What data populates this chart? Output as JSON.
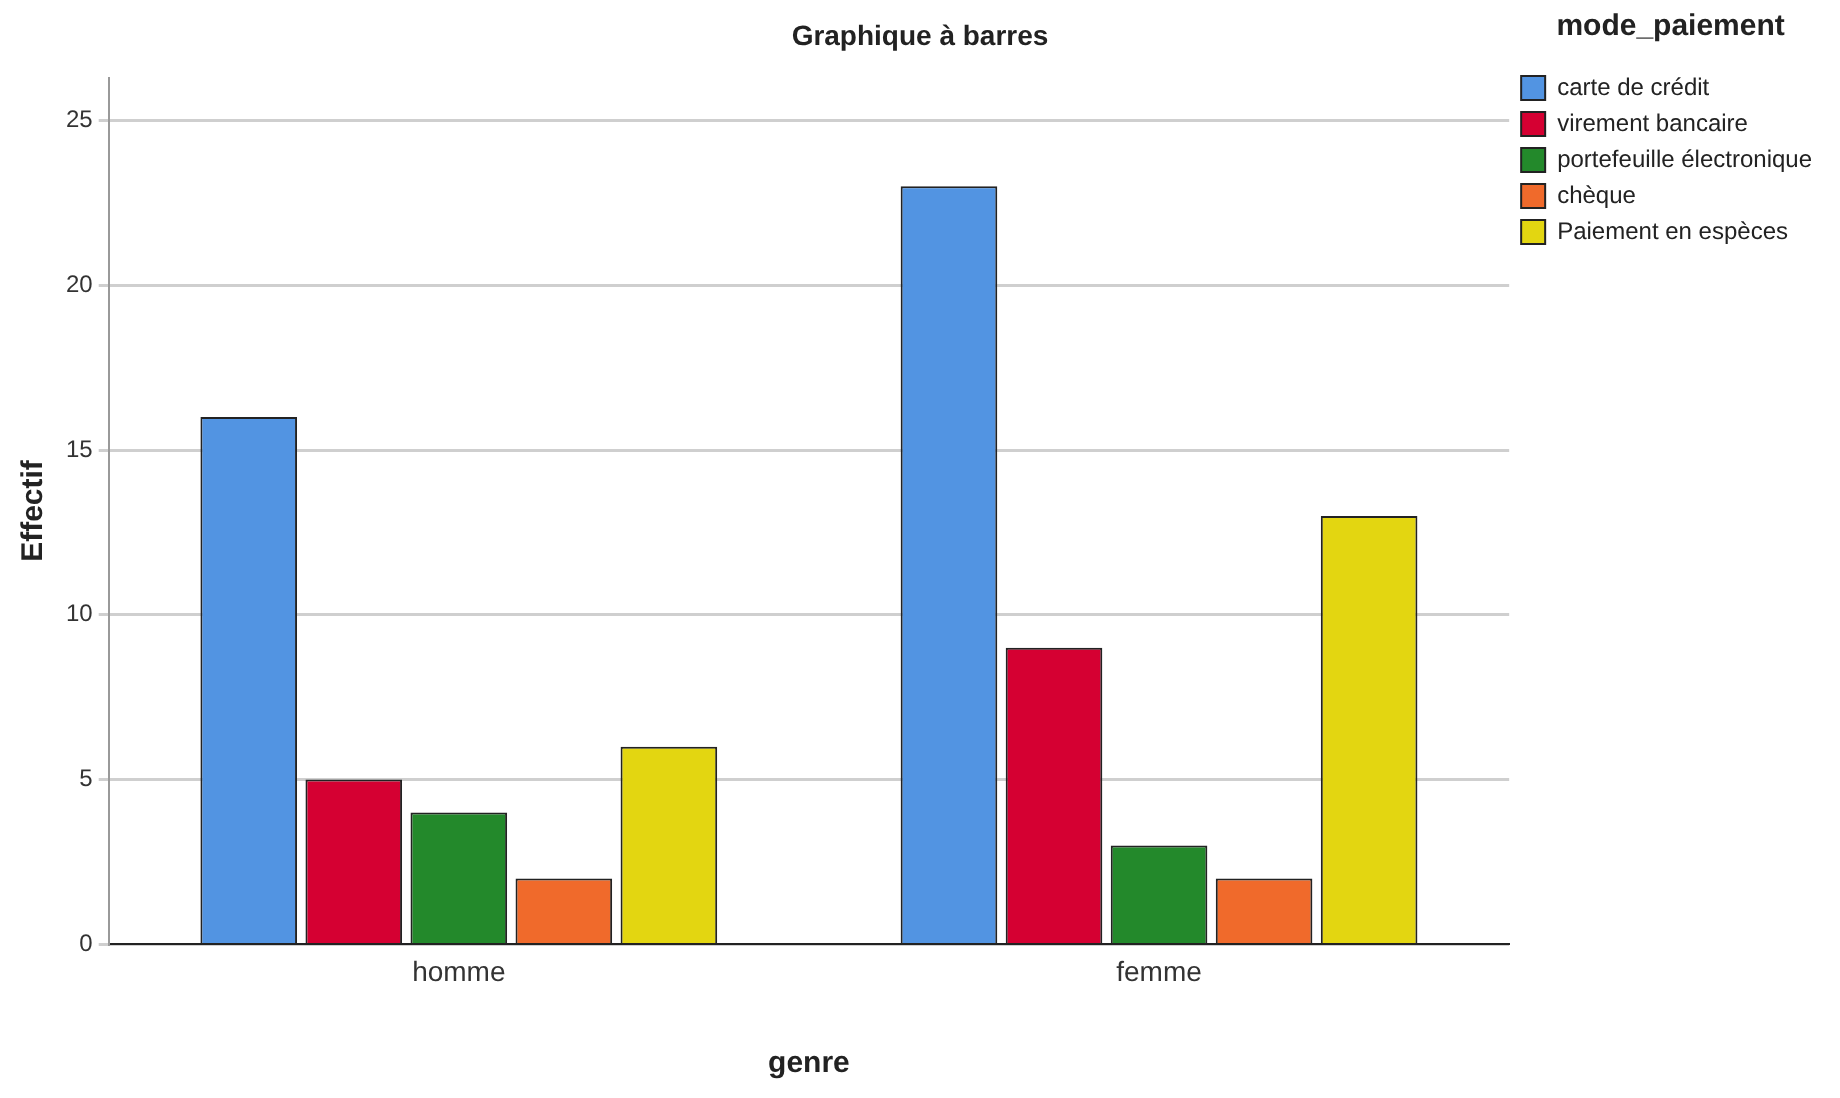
{
  "chart_data": {
    "type": "bar",
    "title": "Graphique à barres",
    "xlabel": "genre",
    "ylabel": "Effectif",
    "legend_title": "mode_paiement",
    "categories": [
      "homme",
      "femme"
    ],
    "series": [
      {
        "name": "carte de crédit",
        "color": "#5294e2",
        "values": [
          16,
          23
        ]
      },
      {
        "name": "virement bancaire",
        "color": "#d50032",
        "values": [
          5,
          9
        ]
      },
      {
        "name": "portefeuille électronique",
        "color": "#23892b",
        "values": [
          4,
          3
        ]
      },
      {
        "name": "chèque",
        "color": "#f06a2b",
        "values": [
          2,
          2
        ]
      },
      {
        "name": "Paiement en espèces",
        "color": "#e3d611",
        "values": [
          6,
          13
        ]
      }
    ],
    "ylim": [
      0,
      26.3
    ],
    "yticks": [
      0,
      5,
      10,
      15,
      20,
      25
    ],
    "grid": "y",
    "legend": "right"
  }
}
